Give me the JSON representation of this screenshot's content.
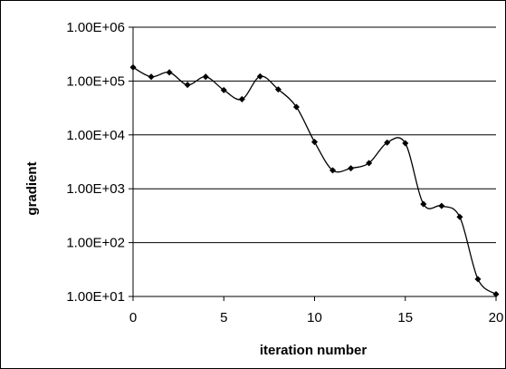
{
  "chart_data": {
    "type": "line",
    "title": "",
    "xlabel": "iteration number",
    "ylabel": "gradient",
    "xlim": [
      0,
      20
    ],
    "ylim": [
      10,
      1000000
    ],
    "yscale": "log",
    "x_ticks": [
      "0",
      "5",
      "10",
      "15",
      "20"
    ],
    "y_ticks": [
      "1.00E+01",
      "1.00E+02",
      "1.00E+03",
      "1.00E+04",
      "1.00E+05",
      "1.00E+06"
    ],
    "grid": "horizontal major gridlines",
    "legend": "none",
    "line_color": "#000000",
    "series": [
      {
        "x": [
          0,
          1,
          2,
          3,
          4,
          5,
          6,
          7,
          8,
          9,
          10,
          11,
          12,
          13,
          14,
          15,
          16,
          17,
          18,
          19,
          20
        ],
        "values": [
          180000,
          120000,
          145000,
          85000,
          120000,
          68000,
          46000,
          122000,
          70000,
          33000,
          7400,
          2200,
          2400,
          3000,
          7200,
          7000,
          520,
          480,
          300,
          21,
          11
        ]
      }
    ]
  }
}
